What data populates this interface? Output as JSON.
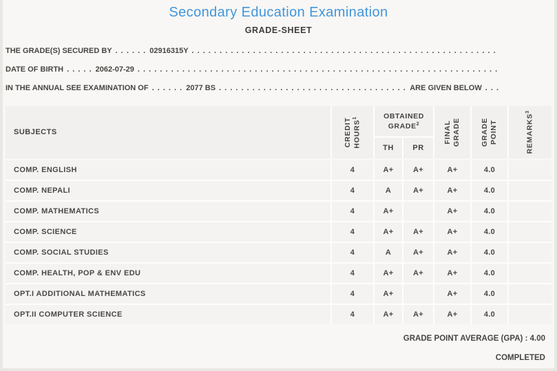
{
  "header": {
    "title": "Secondary Education Examination",
    "subtitle": "GRADE-SHEET"
  },
  "info": {
    "line1": {
      "label": "THE GRADE(S) SECURED BY",
      "dots_lead": ". . . . . .",
      "value": "02916315Y",
      "dots_fill": ". . . . . . . . . . . . . . . . . . . . . . . . . . . . . . . . . . . . . . . . . . . . . . . . . . . . . . . . . . . . . . . . . . . . . . . . . . . . . . . ."
    },
    "line2": {
      "label": "DATE OF BIRTH",
      "dots_lead": ". . . . .",
      "value": "2062-07-29",
      "dots_fill": ". . . . . . . . . . . . . . . . . . . . . . . . . . . . . . . . . . . . . . . . . . . . . . . . . . . . . . . . . . . . . . . . . . . . . . . . . . . . . . . ."
    },
    "line3": {
      "label": "IN THE ANNUAL SEE EXAMINATION OF",
      "dots_lead": ". . . . . .",
      "value": "2077 BS",
      "dots_fill": ". . . . . . . . . . . . . . . . . . . . . . . . . . . . . . . . . . . . . . . . . . . . . . . . . . . . . . . . . . . . . . . .",
      "suffix": "ARE GIVEN BELOW",
      "dots_tail": ". . ."
    }
  },
  "table": {
    "headers": {
      "subjects": "SUBJECTS",
      "credit_hours": {
        "line1": "CREDIT",
        "line2": "HOURS",
        "sup": "1"
      },
      "obtained_grade": {
        "line1": "OBTAINED",
        "line2": "GRADE",
        "sup": "2"
      },
      "th": "TH",
      "pr": "PR",
      "final_grade": {
        "line1": "FINAL",
        "line2": "GRADE"
      },
      "grade_point": {
        "line1": "GRADE",
        "line2": "POINT"
      },
      "remarks": {
        "line1": "REMARKS",
        "sup": "3"
      }
    },
    "rows": [
      {
        "subject": "COMP. ENGLISH",
        "credit": "4",
        "th": "A+",
        "pr": "A+",
        "final": "A+",
        "gp": "4.0",
        "remarks": ""
      },
      {
        "subject": "COMP. NEPALI",
        "credit": "4",
        "th": "A",
        "pr": "A+",
        "final": "A+",
        "gp": "4.0",
        "remarks": ""
      },
      {
        "subject": "COMP. MATHEMATICS",
        "credit": "4",
        "th": "A+",
        "pr": "",
        "final": "A+",
        "gp": "4.0",
        "remarks": ""
      },
      {
        "subject": "COMP. SCIENCE",
        "credit": "4",
        "th": "A+",
        "pr": "A+",
        "final": "A+",
        "gp": "4.0",
        "remarks": ""
      },
      {
        "subject": "COMP. SOCIAL STUDIES",
        "credit": "4",
        "th": "A",
        "pr": "A+",
        "final": "A+",
        "gp": "4.0",
        "remarks": ""
      },
      {
        "subject": "COMP. HEALTH, POP & ENV EDU",
        "credit": "4",
        "th": "A+",
        "pr": "A+",
        "final": "A+",
        "gp": "4.0",
        "remarks": ""
      },
      {
        "subject": "OPT.I ADDITIONAL MATHEMATICS",
        "credit": "4",
        "th": "A+",
        "pr": "",
        "final": "A+",
        "gp": "4.0",
        "remarks": ""
      },
      {
        "subject": "OPT.II COMPUTER SCIENCE",
        "credit": "4",
        "th": "A+",
        "pr": "A+",
        "final": "A+",
        "gp": "4.0",
        "remarks": ""
      }
    ]
  },
  "footer": {
    "gpa_label": "GRADE POINT AVERAGE (GPA) :",
    "gpa_value": "4.00",
    "status": "COMPLETED"
  },
  "colors": {
    "title_blue": "#4295da",
    "text": "#454341",
    "page_bg": "#f8f7f5",
    "cell_bg": "#f4f3f1",
    "header_cell_bg": "#f1f0ee",
    "divider": "#fdfdfc",
    "edge_strip": "#e9e7e4"
  }
}
